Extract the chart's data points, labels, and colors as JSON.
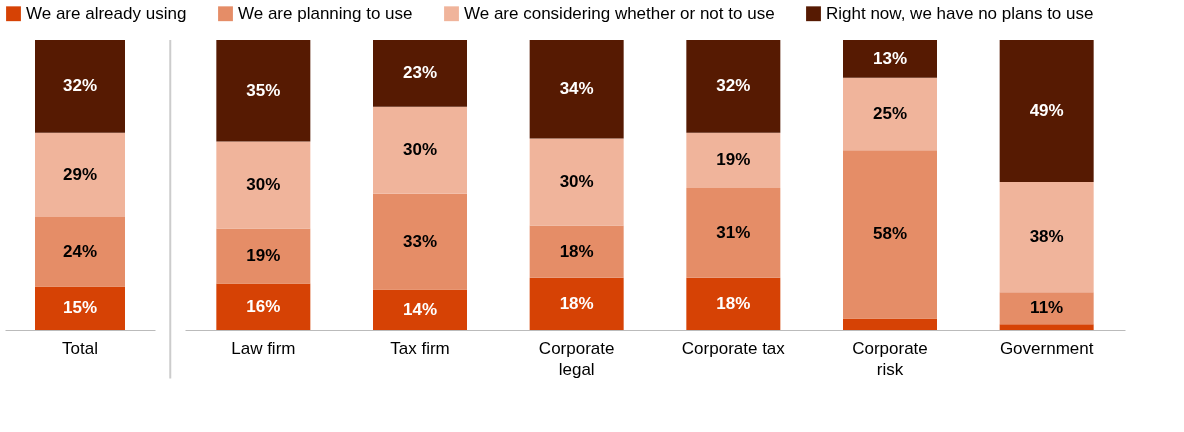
{
  "chart_data": [
    {
      "type": "bar",
      "stacked": true,
      "legend": "top",
      "categories": [
        "Total"
      ],
      "series": [
        {
          "name": "We are already using",
          "color": "#d64205",
          "values": [
            15
          ],
          "value_labels": [
            "15%"
          ]
        },
        {
          "name": "We are planning to use",
          "color": "#e58d67",
          "values": [
            24
          ],
          "value_labels": [
            "24%"
          ]
        },
        {
          "name": "We are considering whether or not to use",
          "color": "#f0b49b",
          "values": [
            29
          ],
          "value_labels": [
            "29%"
          ]
        },
        {
          "name": "Right now, we have no plans to use",
          "color": "#561a02",
          "values": [
            32
          ],
          "value_labels": [
            "32%"
          ]
        }
      ]
    },
    {
      "type": "bar",
      "stacked": true,
      "legend": "top",
      "categories": [
        "Law firm",
        "Tax firm",
        "Corporate legal",
        "Corporate tax",
        "Corporate risk",
        "Government"
      ],
      "series": [
        {
          "name": "We are already using",
          "color": "#d64205",
          "values": [
            16,
            14,
            18,
            18,
            4,
            2
          ],
          "value_labels": [
            "16%",
            "14%",
            "18%",
            "18%",
            null,
            null
          ]
        },
        {
          "name": "We are planning to use",
          "color": "#e58d67",
          "values": [
            19,
            33,
            18,
            31,
            58,
            11
          ],
          "value_labels": [
            "19%",
            "33%",
            "18%",
            "31%",
            "58%",
            "11%"
          ]
        },
        {
          "name": "We are considering whether or not to use",
          "color": "#f0b49b",
          "values": [
            30,
            30,
            30,
            19,
            25,
            38
          ],
          "value_labels": [
            "30%",
            "30%",
            "30%",
            "19%",
            "25%",
            "38%"
          ]
        },
        {
          "name": "Right now, we have no plans to use",
          "color": "#561a02",
          "values": [
            35,
            23,
            34,
            32,
            13,
            49
          ],
          "value_labels": [
            "35%",
            "23%",
            "34%",
            "32%",
            "13%",
            "49%"
          ]
        }
      ]
    }
  ]
}
